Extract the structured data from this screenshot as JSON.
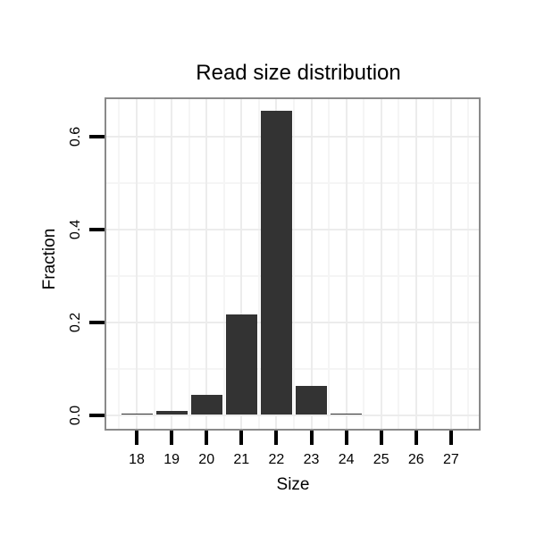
{
  "chart_data": {
    "type": "bar",
    "title": "Read size distribution",
    "xlabel": "Size",
    "ylabel": "Fraction",
    "categories": [
      18,
      19,
      20,
      21,
      22,
      23,
      24,
      25,
      26,
      27
    ],
    "values": [
      0.002,
      0.009,
      0.043,
      0.217,
      0.655,
      0.062,
      0.002,
      0,
      0,
      0
    ],
    "x_ticks": [
      "18",
      "19",
      "20",
      "21",
      "22",
      "23",
      "24",
      "25",
      "26",
      "27"
    ],
    "y_ticks": [
      "0.0",
      "0.2",
      "0.4",
      "0.6"
    ],
    "y_tick_values": [
      0,
      0.2,
      0.4,
      0.6
    ],
    "ylim": [
      -0.033,
      0.684
    ],
    "xlim": [
      17.1,
      27.85
    ],
    "legend": "none",
    "grid": {
      "x_major": [
        18,
        19,
        20,
        21,
        22,
        23,
        24,
        25,
        26,
        27
      ],
      "x_minor": [
        17.5,
        18.5,
        19.5,
        20.5,
        21.5,
        22.5,
        23.5,
        24.5,
        25.5,
        26.5,
        27.5
      ],
      "y_major": [
        0,
        0.2,
        0.4,
        0.6
      ],
      "y_minor": [
        0.1,
        0.3,
        0.5
      ]
    },
    "colors": {
      "bar": "#333333",
      "panel_border": "#8a8a8a",
      "grid_major": "#ececec",
      "grid_minor": "#f5f5f5",
      "text": "#000000",
      "background": "#ffffff"
    }
  }
}
